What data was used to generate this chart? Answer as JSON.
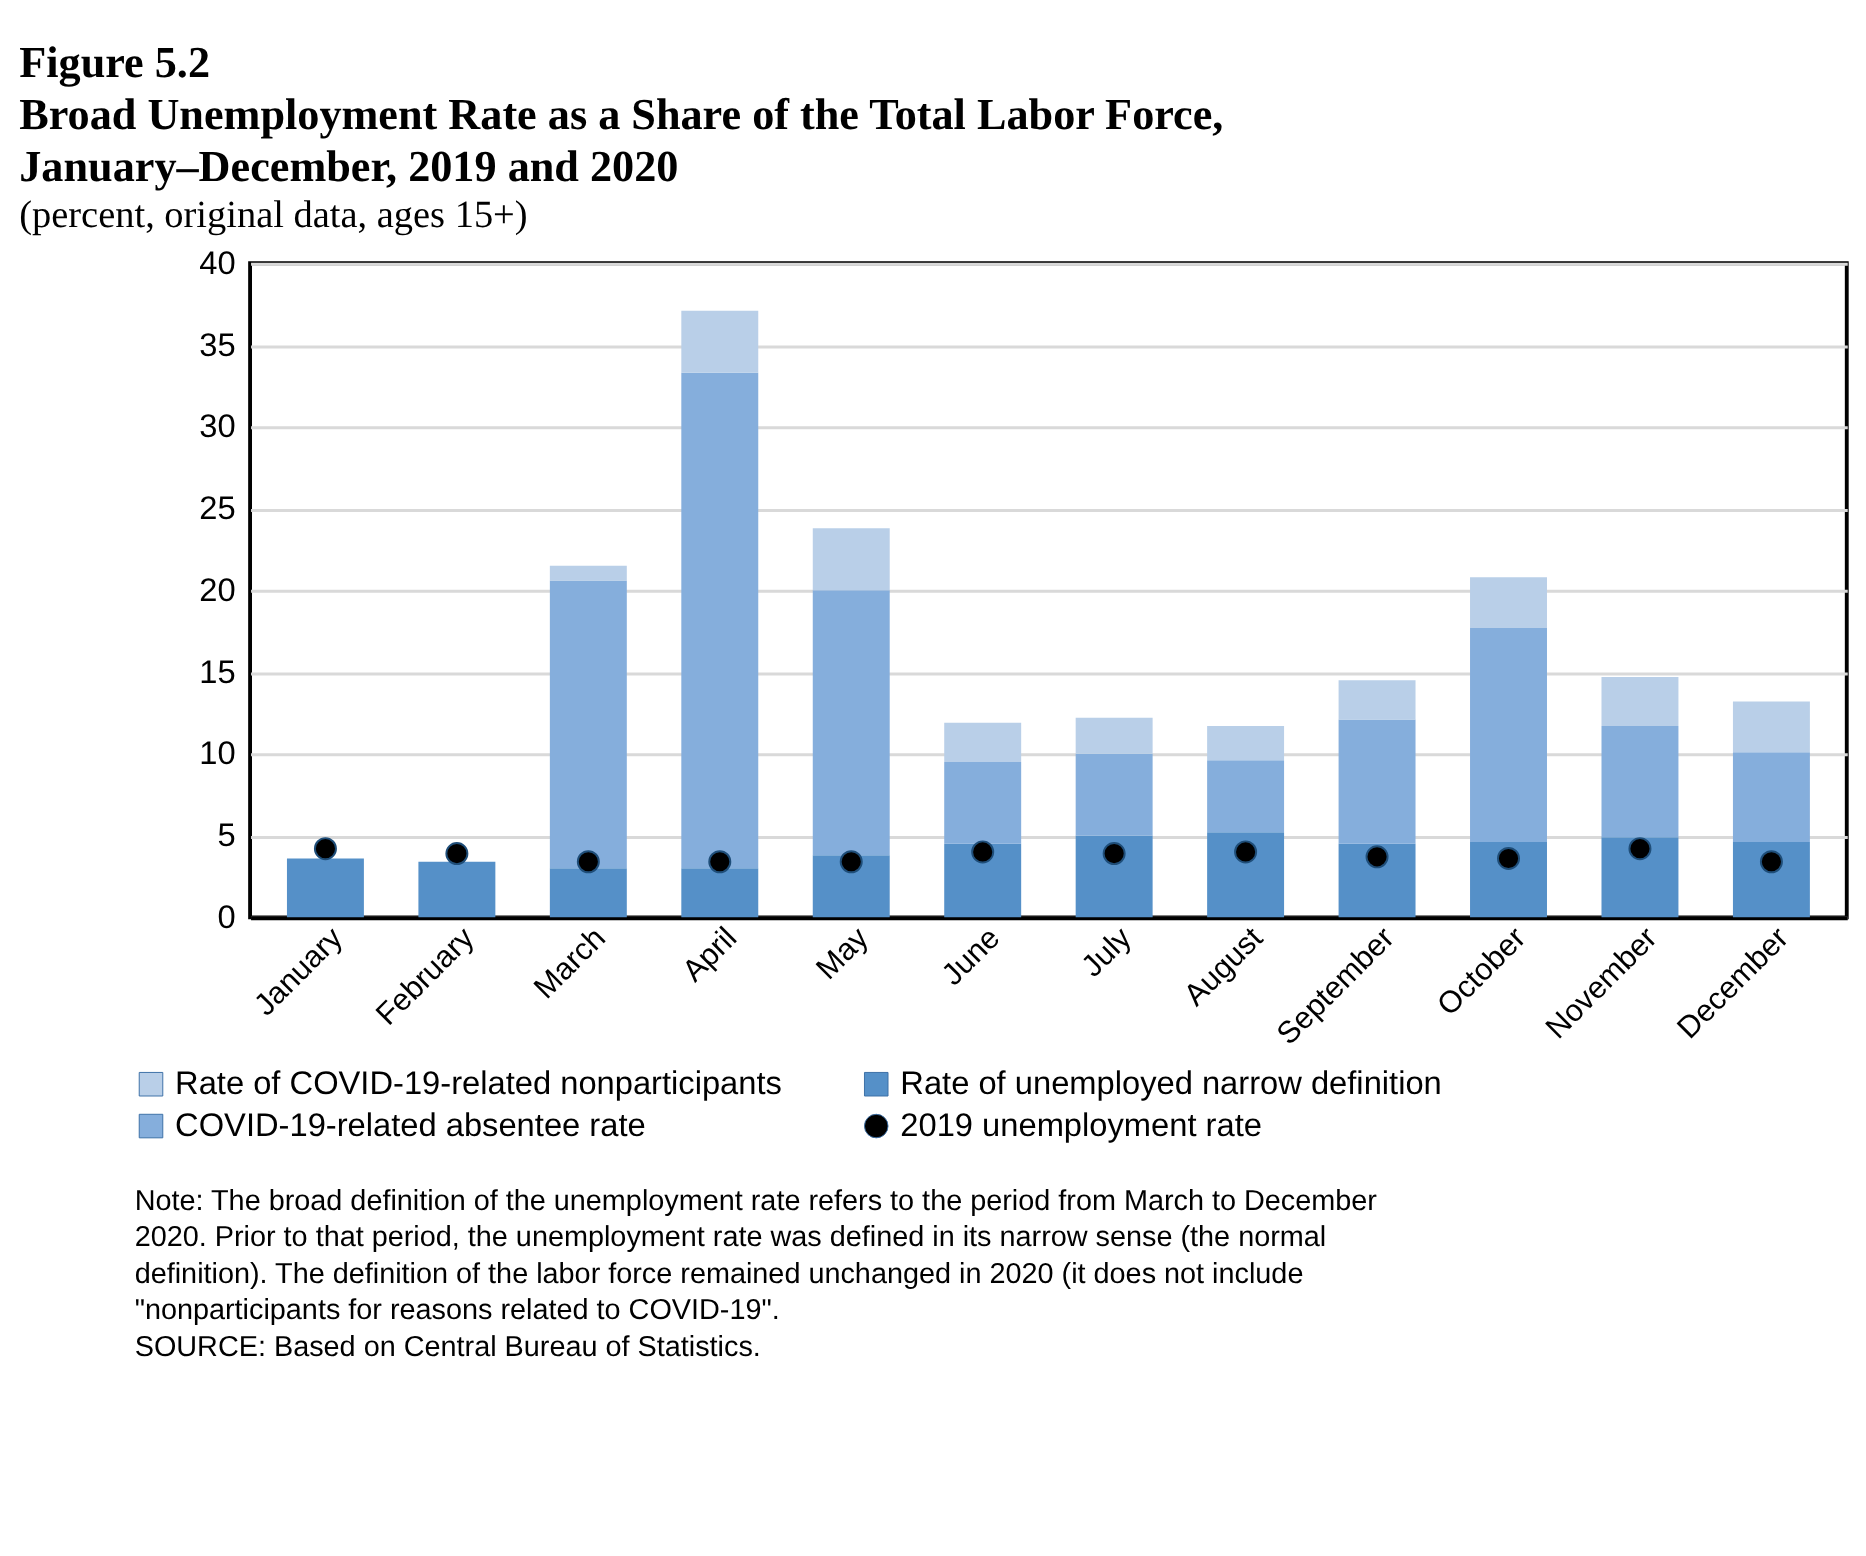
{
  "chart_data": {
    "type": "bar",
    "stacked": true,
    "title": "Figure 5.2\nBroad Unemployment Rate as a Share of the Total Labor Force,\nJanuary–December, 2019 and 2020",
    "subtitle": "(percent, original data, ages 15+)",
    "categories": [
      "January",
      "February",
      "March",
      "April",
      "May",
      "June",
      "July",
      "August",
      "September",
      "October",
      "November",
      "December"
    ],
    "series": [
      {
        "name": "Rate of unemployed narrow definition",
        "color": "#5590c8",
        "values": [
          3.6,
          3.4,
          3.0,
          3.0,
          3.8,
          4.5,
          5.0,
          5.2,
          4.5,
          4.6,
          4.9,
          4.6
        ]
      },
      {
        "name": "COVID-19-related absentee rate",
        "color": "#85aedc",
        "values": [
          null,
          null,
          17.6,
          30.3,
          16.2,
          5.0,
          5.0,
          4.4,
          7.6,
          13.1,
          6.8,
          5.5
        ]
      },
      {
        "name": "Rate of COVID-19-related nonparticipants",
        "color": "#b9cfe8",
        "values": [
          null,
          null,
          0.9,
          3.8,
          3.8,
          2.4,
          2.2,
          2.1,
          2.4,
          3.1,
          3.0,
          3.1
        ]
      },
      {
        "name": "2019 unemployment rate",
        "type": "scatter",
        "color": "#000000",
        "marker": "circle",
        "values": [
          4.2,
          3.9,
          3.4,
          3.4,
          3.4,
          4.0,
          3.9,
          4.0,
          3.7,
          3.6,
          4.2,
          3.4
        ]
      }
    ],
    "ylim": [
      0,
      40
    ],
    "yticks": [
      0,
      5,
      10,
      15,
      20,
      25,
      30,
      35,
      40
    ],
    "grid": "y",
    "legend": "bottom",
    "annotations": [
      "Note: The broad definition of the unemployment rate refers to the period from March to December 2020.  Prior to that period, the unemployment rate was defined in its narrow sense (the normal definition).  The definition of the labor force remained unchanged in 2020 (it does not include \"nonparticipants for reasons related to COVID-19\".",
      "SOURCE: Based on Central Bureau of Statistics."
    ]
  }
}
